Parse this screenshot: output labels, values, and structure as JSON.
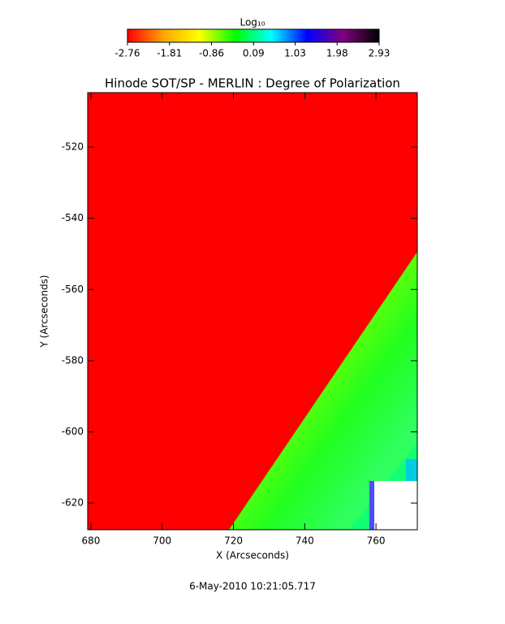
{
  "chart_data": {
    "type": "heatmap",
    "title": "Hinode SOT/SP - MERLIN : Degree of Polarization",
    "xlabel": "X (Arcseconds)",
    "ylabel": "Y (Arcseconds)",
    "xlim": [
      679.1,
      771.6
    ],
    "xticks": [
      680,
      700,
      720,
      740,
      760
    ],
    "ylim": [
      -627.5,
      -504.7
    ],
    "yticks": [
      -520,
      -540,
      -560,
      -580,
      -600,
      -620
    ],
    "colorbar": {
      "label": "Log₁₀",
      "zlim": [
        -2.76,
        2.93
      ],
      "ticks": [
        -2.76,
        -1.81,
        -0.86,
        0.09,
        1.03,
        1.98,
        2.93
      ],
      "colors": [
        "#ff0000",
        "#ffa500",
        "#ffff00",
        "#00ff00",
        "#00ffff",
        "#0000ff",
        "#800080",
        "#000000"
      ]
    },
    "footer": "6-May-2010 10:21:05.717"
  }
}
